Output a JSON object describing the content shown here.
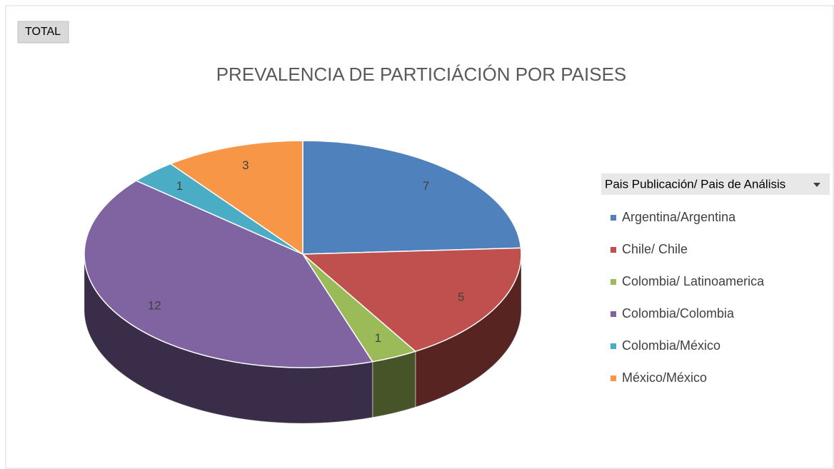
{
  "button": {
    "label": "TOTAL"
  },
  "chart_data": {
    "type": "pie",
    "title": "PREVALENCIA DE PARTICIÁCIÓN POR PAISES",
    "legend_title": "Pais Publicación/ Pais de Análisis",
    "categories": [
      "Argentina/Argentina",
      "Chile/ Chile",
      "Colombia/ Latinoamerica",
      "Colombia/Colombia",
      "Colombia/México",
      "México/México"
    ],
    "values": [
      7,
      5,
      1,
      12,
      1,
      3
    ],
    "colors": [
      "#4f81bd",
      "#c0504d",
      "#9bbb59",
      "#8064a2",
      "#4bacc6",
      "#f79646"
    ],
    "legend": "right"
  }
}
